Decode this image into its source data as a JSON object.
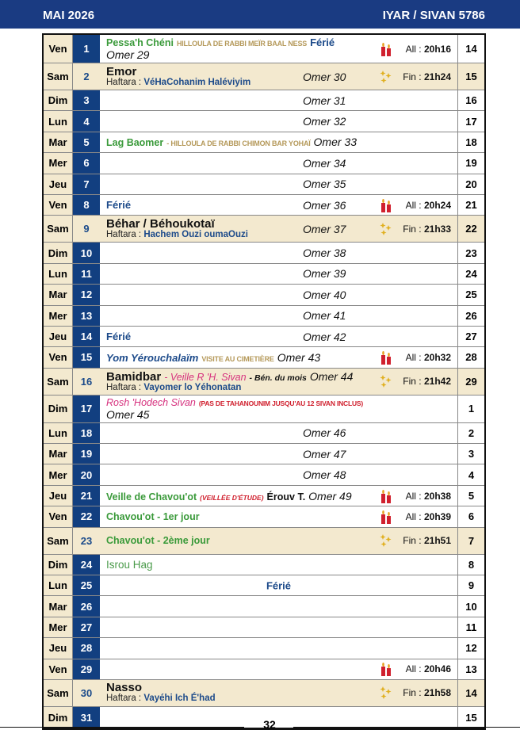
{
  "header": {
    "month": "MAI 2026",
    "hebrew_month": "IYAR / SIVAN 5786"
  },
  "page_number": "32",
  "colors": {
    "header": "#1a3b82",
    "day_number_bg": "#123f80",
    "shabbat_bg": "#f3e9cf",
    "green": "#3a9a3a",
    "pink": "#d6317e",
    "candle": "#d0202e",
    "stars": "#e0b020"
  },
  "rows": [
    {
      "day": "Ven",
      "num": "1",
      "heb": "14",
      "title": [
        {
          "t": "Pessa'h Chéni",
          "s": "green"
        },
        {
          "t": "HILLOULA DE RABBI MEÏR BAAL NESS",
          "s": "tan"
        },
        {
          "t": "Férié",
          "s": "blue"
        }
      ],
      "omer": "Omer 29",
      "omer_inline": true,
      "light": "candle",
      "time_label": "All : ",
      "time": "20h16"
    },
    {
      "day": "Sam",
      "num": "2",
      "heb": "15",
      "sab": true,
      "title": [
        {
          "t": "Emor",
          "s": "bigb"
        }
      ],
      "haftara_label": "Haftara : ",
      "haftara": "VéHaCohanim Haléviyim",
      "omer": "Omer 30",
      "light": "stars",
      "time_label": "Fin : ",
      "time": "21h24"
    },
    {
      "day": "Dim",
      "num": "3",
      "heb": "16",
      "omer": "Omer 31"
    },
    {
      "day": "Lun",
      "num": "4",
      "heb": "17",
      "omer": "Omer 32"
    },
    {
      "day": "Mar",
      "num": "5",
      "heb": "18",
      "title": [
        {
          "t": "Lag Baomer",
          "s": "green"
        },
        {
          "t": "- HILLOULA DE RABBI CHIMON BAR YOHAÏ",
          "s": "tan"
        }
      ],
      "omer": "Omer 33",
      "omer_inline": true
    },
    {
      "day": "Mer",
      "num": "6",
      "heb": "19",
      "omer": "Omer 34"
    },
    {
      "day": "Jeu",
      "num": "7",
      "heb": "20",
      "omer": "Omer 35"
    },
    {
      "day": "Ven",
      "num": "8",
      "heb": "21",
      "title": [
        {
          "t": " Férié",
          "s": "blue"
        }
      ],
      "omer": "Omer 36",
      "light": "candle",
      "time_label": "All : ",
      "time": "20h24"
    },
    {
      "day": "Sam",
      "num": "9",
      "heb": "22",
      "sab": true,
      "title": [
        {
          "t": "Béhar / Béhoukotaï",
          "s": "bigb"
        }
      ],
      "haftara_label": "Haftara : ",
      "haftara": "Hachem Ouzi oumaOuzi",
      "omer": "Omer 37",
      "light": "stars",
      "time_label": "Fin : ",
      "time": "21h33"
    },
    {
      "day": "Dim",
      "num": "10",
      "heb": "23",
      "omer": "Omer 38"
    },
    {
      "day": "Lun",
      "num": "11",
      "heb": "24",
      "omer": "Omer 39"
    },
    {
      "day": "Mar",
      "num": "12",
      "heb": "25",
      "omer": "Omer 40"
    },
    {
      "day": "Mer",
      "num": "13",
      "heb": "26",
      "omer": "Omer 41"
    },
    {
      "day": "Jeu",
      "num": "14",
      "heb": "27",
      "title": [
        {
          "t": "Férié",
          "s": "blue"
        }
      ],
      "omer": "Omer 42"
    },
    {
      "day": "Ven",
      "num": "15",
      "heb": "28",
      "title": [
        {
          "t": "Yom Yérouchalaïm",
          "s": "iblue"
        },
        {
          "t": "VISITE AU CIMETIÈRE",
          "s": "tan"
        }
      ],
      "omer": "Omer 43",
      "omer_inline": true,
      "light": "candle",
      "time_label": "All : ",
      "time": "20h32"
    },
    {
      "day": "Sam",
      "num": "16",
      "heb": "29",
      "sab": true,
      "title": [
        {
          "t": "Bamidbar",
          "s": "bigb"
        },
        {
          "t": "- Veille R 'H. Sivan",
          "s": "pink"
        },
        {
          "t": "- Bén. du mois",
          "s": "iblack"
        }
      ],
      "haftara_label": "Haftara : ",
      "haftara": "Vayomer lo Yéhonatan",
      "omer": "Omer 44",
      "omer_inline": true,
      "light": "stars",
      "time_label": "Fin : ",
      "time": "21h42"
    },
    {
      "day": "Dim",
      "num": "17",
      "heb": "1",
      "title": [
        {
          "t": "Rosh 'Hodech Sivan",
          "s": "pink"
        },
        {
          "t": "(PAS DE TAHANOUNIM JUSQU'AU 12 SIVAN INCLUS)",
          "s": "red"
        }
      ],
      "omer": "Omer 45",
      "omer_inline": true
    },
    {
      "day": "Lun",
      "num": "18",
      "heb": "2",
      "omer": "Omer 46"
    },
    {
      "day": "Mar",
      "num": "19",
      "heb": "3",
      "omer": "Omer 47"
    },
    {
      "day": "Mer",
      "num": "20",
      "heb": "4",
      "omer": "Omer 48"
    },
    {
      "day": "Jeu",
      "num": "21",
      "heb": "5",
      "title": [
        {
          "t": "Veille de Chavou'ot",
          "s": "green"
        },
        {
          "t": "(VEILLÉE D'ÉTUDE)",
          "s": "redi"
        },
        {
          "t": "Érouv T.",
          "s": "black"
        }
      ],
      "omer": "Omer 49",
      "omer_inline": true,
      "light": "candle",
      "time_label": "All : ",
      "time": "20h38"
    },
    {
      "day": "Ven",
      "num": "22",
      "heb": "6",
      "title": [
        {
          "t": "Chavou'ot - 1er jour",
          "s": "green"
        }
      ],
      "light": "candle",
      "time_label": "All : ",
      "time": "20h39"
    },
    {
      "day": "Sam",
      "num": "23",
      "heb": "7",
      "sab": true,
      "title": [
        {
          "t": "Chavou'ot - 2ème jour",
          "s": "green"
        }
      ],
      "light": "stars",
      "time_label": "Fin : ",
      "time": "21h51"
    },
    {
      "day": "Dim",
      "num": "24",
      "heb": "8",
      "title": [
        {
          "t": "Isrou Hag",
          "s": "lgreen"
        }
      ]
    },
    {
      "day": "Lun",
      "num": "25",
      "heb": "9",
      "center": "Férié"
    },
    {
      "day": "Mar",
      "num": "26",
      "heb": "10"
    },
    {
      "day": "Mer",
      "num": "27",
      "heb": "11"
    },
    {
      "day": "Jeu",
      "num": "28",
      "heb": "12"
    },
    {
      "day": "Ven",
      "num": "29",
      "heb": "13",
      "light": "candle",
      "time_label": "All : ",
      "time": "20h46"
    },
    {
      "day": "Sam",
      "num": "30",
      "heb": "14",
      "sab": true,
      "title": [
        {
          "t": "Nasso",
          "s": "bigb"
        }
      ],
      "haftara_label": "Haftara : ",
      "haftara": "Vayéhi Ich É'had",
      "light": "stars",
      "time_label": "Fin : ",
      "time": "21h58"
    },
    {
      "day": "Dim",
      "num": "31",
      "heb": "15"
    }
  ]
}
